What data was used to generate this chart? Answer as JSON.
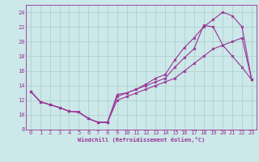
{
  "xlabel": "Windchill (Refroidissement éolien,°C)",
  "bg_color": "#cce8e8",
  "grid_color": "#aacccc",
  "line_color": "#993399",
  "xlim": [
    -0.5,
    23.5
  ],
  "ylim": [
    8,
    25
  ],
  "xticks": [
    0,
    1,
    2,
    3,
    4,
    5,
    6,
    7,
    8,
    9,
    10,
    11,
    12,
    13,
    14,
    15,
    16,
    17,
    18,
    19,
    20,
    21,
    22,
    23
  ],
  "yticks": [
    8,
    10,
    12,
    14,
    16,
    18,
    20,
    22,
    24
  ],
  "series1_x": [
    0,
    1,
    2,
    3,
    4,
    5,
    6,
    7,
    8,
    9,
    10,
    11,
    12,
    13,
    14,
    15,
    16,
    17,
    18,
    19,
    20,
    21,
    22,
    23
  ],
  "series1_y": [
    13.2,
    11.8,
    11.4,
    11.0,
    10.5,
    10.4,
    9.5,
    9.0,
    9.0,
    12.8,
    13.0,
    13.5,
    14.2,
    15.0,
    15.5,
    17.5,
    19.2,
    20.5,
    22.0,
    23.0,
    24.0,
    23.5,
    22.0,
    14.8
  ],
  "series2_x": [
    0,
    1,
    2,
    3,
    4,
    5,
    6,
    7,
    8,
    9,
    10,
    11,
    12,
    13,
    14,
    15,
    16,
    17,
    18,
    19,
    20,
    21,
    22,
    23
  ],
  "series2_y": [
    13.2,
    11.8,
    11.4,
    11.0,
    10.5,
    10.4,
    9.5,
    9.0,
    9.0,
    12.5,
    13.0,
    13.5,
    14.0,
    14.5,
    15.0,
    16.5,
    17.8,
    19.0,
    22.2,
    22.0,
    19.5,
    18.0,
    16.5,
    14.8
  ],
  "series3_x": [
    0,
    1,
    2,
    3,
    4,
    5,
    6,
    7,
    8,
    9,
    10,
    11,
    12,
    13,
    14,
    15,
    16,
    17,
    18,
    19,
    20,
    21,
    22,
    23
  ],
  "series3_y": [
    13.2,
    11.8,
    11.4,
    11.0,
    10.5,
    10.4,
    9.5,
    9.0,
    9.0,
    12.0,
    12.5,
    13.0,
    13.5,
    14.0,
    14.5,
    15.0,
    16.0,
    17.0,
    18.0,
    19.0,
    19.5,
    20.0,
    20.5,
    14.8
  ],
  "xlabel_fontsize": 5,
  "tick_fontsize": 5,
  "linewidth": 0.8,
  "markersize": 2.0
}
